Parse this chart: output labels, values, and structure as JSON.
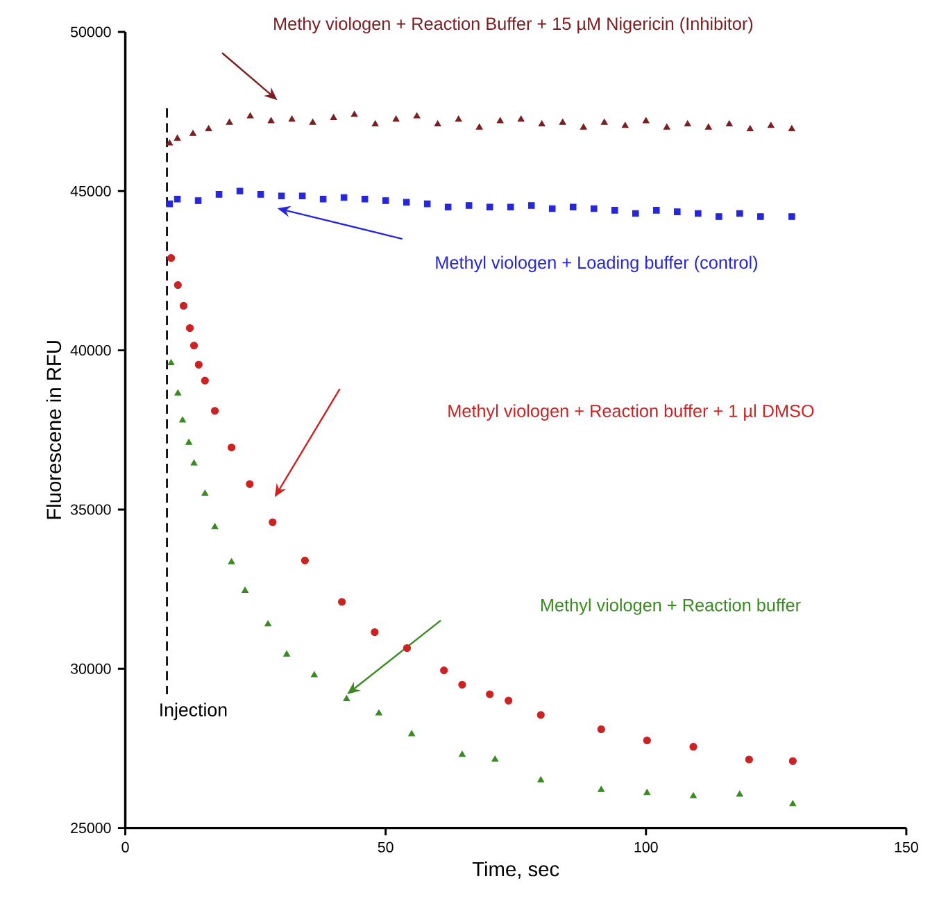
{
  "chart_data": {
    "type": "scatter",
    "xlabel": "Time, sec",
    "ylabel": "Fluorescene in RFU",
    "xlim": [
      0,
      150
    ],
    "ylim": [
      25000,
      50000
    ],
    "xticks": [
      0,
      50,
      100,
      150
    ],
    "yticks": [
      25000,
      30000,
      35000,
      40000,
      45000,
      50000
    ],
    "grid": false,
    "ref_lines": [
      {
        "axis": "x",
        "value": 8,
        "label": "Injection",
        "line_style": "dashed",
        "color": "#000000"
      }
    ],
    "series": [
      {
        "name": "Methy viologen + Reaction Buffer + 15 µM Nigericin (Inhibitor)",
        "color": "#7a1f22",
        "marker": "triangle",
        "x": [
          8.5,
          10,
          13,
          16,
          20,
          24,
          28,
          32,
          36,
          40,
          44,
          48,
          52,
          56,
          60,
          64,
          68,
          72,
          76,
          80,
          84,
          88,
          92,
          96,
          100,
          104,
          108,
          112,
          116,
          120,
          124,
          128
        ],
        "values": [
          46500,
          46650,
          46800,
          46950,
          47150,
          47350,
          47200,
          47250,
          47150,
          47300,
          47400,
          47100,
          47250,
          47350,
          47100,
          47250,
          47000,
          47200,
          47250,
          47100,
          47150,
          47000,
          47150,
          47050,
          47200,
          47000,
          47100,
          47000,
          47100,
          46950,
          47050,
          46950
        ]
      },
      {
        "name": "Methyl viologen + Loading buffer (control)",
        "color": "#2626e0",
        "marker": "square",
        "x": [
          8.5,
          10,
          14,
          18,
          22,
          26,
          30,
          34,
          38,
          42,
          46,
          50,
          54,
          58,
          62,
          66,
          70,
          74,
          78,
          82,
          86,
          90,
          94,
          98,
          102,
          106,
          110,
          114,
          118,
          122,
          128
        ],
        "values": [
          44600,
          44750,
          44700,
          44900,
          45000,
          44900,
          44850,
          44850,
          44750,
          44800,
          44750,
          44700,
          44650,
          44600,
          44500,
          44550,
          44500,
          44500,
          44550,
          44450,
          44500,
          44450,
          44400,
          44300,
          44400,
          44350,
          44300,
          44200,
          44300,
          44200,
          44200
        ]
      },
      {
        "name": "Methyl viologen + Reaction buffer  + 1 µl DMSO",
        "color": "#cc2222",
        "marker": "circle",
        "x": [
          8.8,
          10.1,
          11.2,
          12.4,
          13.2,
          14.1,
          15.3,
          17.2,
          20.4,
          23.9,
          28.3,
          34.5,
          41.6,
          47.9,
          54.1,
          61.2,
          64.7,
          70.0,
          73.6,
          79.8,
          91.4,
          100.2,
          109.1,
          119.8,
          128.2
        ],
        "values": [
          42900,
          42050,
          41400,
          40700,
          40150,
          39550,
          39050,
          38100,
          36950,
          35800,
          34600,
          33400,
          32100,
          31150,
          30650,
          29950,
          29500,
          29200,
          29000,
          28550,
          28100,
          27750,
          27550,
          27150,
          27100
        ]
      },
      {
        "name": "Methyl viologen + Reaction buffer",
        "color": "#3a8a22",
        "marker": "triangle",
        "x": [
          8.8,
          10.1,
          11.0,
          12.2,
          13.2,
          15.3,
          17.2,
          20.4,
          23.0,
          27.4,
          31.0,
          36.3,
          42.5,
          48.7,
          55.0,
          64.7,
          71.0,
          79.8,
          91.4,
          100.2,
          109.1,
          118.0,
          128.2
        ],
        "values": [
          39600,
          38650,
          37800,
          37100,
          36450,
          35500,
          34450,
          33350,
          32450,
          31400,
          30450,
          29800,
          29050,
          28600,
          27950,
          27300,
          27150,
          26500,
          26200,
          26100,
          26000,
          26050,
          25750
        ]
      }
    ]
  }
}
